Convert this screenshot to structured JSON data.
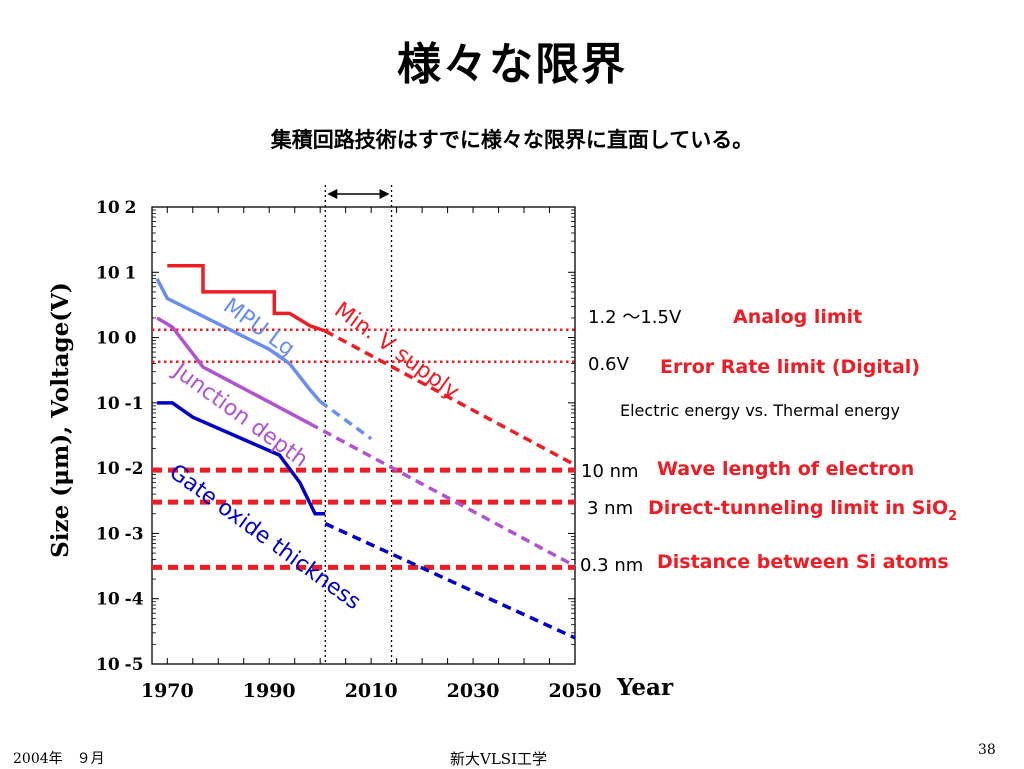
{
  "slide": {
    "title": "様々な限界",
    "subtitle": "集積回路技術はすでに様々な限界に直面している。",
    "footer_date": "2004年　９月",
    "footer_center": "新大VLSI工学",
    "page_number": "38"
  },
  "chart_data": {
    "type": "line",
    "title": "",
    "xlabel": "Year",
    "ylabel": "Size (μm), Voltage(V)",
    "y_scale": "log",
    "xlim": [
      1967,
      2050
    ],
    "ylim_exponents": [
      -5,
      2
    ],
    "x_ticks": [
      "1970",
      "1990",
      "2010",
      "2030",
      "2050"
    ],
    "x_tick_values": [
      1970,
      1990,
      2010,
      2030,
      2050
    ],
    "y_ticks": [
      {
        "base": "10",
        "exp": "2",
        "value": 2
      },
      {
        "base": "10",
        "exp": "1",
        "value": 1
      },
      {
        "base": "10",
        "exp": "0",
        "value": 0
      },
      {
        "base": "10",
        "exp": "-1",
        "value": -1
      },
      {
        "base": "10",
        "exp": "-2",
        "value": -2
      },
      {
        "base": "10",
        "exp": "-3",
        "value": -3
      },
      {
        "base": "10",
        "exp": "-4",
        "value": -4
      },
      {
        "base": "10",
        "exp": "-5",
        "value": -5
      }
    ],
    "vertical_markers": [
      2001,
      2014
    ],
    "series": [
      {
        "name": "Min. V supply",
        "color": "#ee1c24",
        "points": [
          [
            1970,
            1.1
          ],
          [
            1977,
            1.1
          ],
          [
            1977,
            0.7
          ],
          [
            1991,
            0.7
          ],
          [
            1991,
            0.37
          ],
          [
            1994,
            0.37
          ],
          [
            1998,
            0.18
          ],
          [
            2001,
            0.1
          ]
        ],
        "projection": [
          [
            2001,
            0.1
          ],
          [
            2050,
            -1.95
          ]
        ]
      },
      {
        "name": "MPU Lg",
        "color": "#6a8ef0",
        "points": [
          [
            1968,
            0.9
          ],
          [
            1970,
            0.6
          ],
          [
            1990,
            -0.18
          ],
          [
            1994,
            -0.4
          ],
          [
            1998,
            -0.8
          ],
          [
            2000,
            -0.98
          ]
        ],
        "projection": [
          [
            2000,
            -0.98
          ],
          [
            2010,
            -1.55
          ]
        ]
      },
      {
        "name": "Junction depth",
        "color": "#b152d2",
        "points": [
          [
            1968,
            0.3
          ],
          [
            1971,
            0.16
          ],
          [
            1977,
            -0.45
          ],
          [
            1998,
            -1.32
          ]
        ],
        "projection": [
          [
            1998,
            -1.32
          ],
          [
            2050,
            -3.5
          ]
        ]
      },
      {
        "name": "Gate oxide thickness",
        "color": "#0000c8",
        "points": [
          [
            1968,
            -1.0
          ],
          [
            1971,
            -1.0
          ],
          [
            1975,
            -1.22
          ],
          [
            1992,
            -1.8
          ],
          [
            1996,
            -2.22
          ],
          [
            1999,
            -2.7
          ],
          [
            2001,
            -2.7
          ]
        ],
        "projection": [
          [
            2001,
            -2.85
          ],
          [
            2050,
            -4.6
          ]
        ]
      }
    ],
    "horizontal_limits": [
      {
        "value_label": "1.2 〜1.5V",
        "name": "Analog limit",
        "y_exp": 0.12,
        "style": "dotted"
      },
      {
        "value_label": "0.6V",
        "name": "Error Rate limit (Digital)",
        "note": "Electric energy vs. Thermal energy",
        "y_exp": -0.37,
        "style": "dotted"
      },
      {
        "value_label": "10 nm",
        "name": "Wave length of electron",
        "y_exp": -2.03,
        "style": "dashed"
      },
      {
        "value_label": "3 nm",
        "name": "Direct-tunneling limit in SiO",
        "name_sub": "2",
        "y_exp": -2.52,
        "style": "dashed"
      },
      {
        "value_label": "0.3 nm",
        "name": "Distance between Si atoms",
        "y_exp": -3.52,
        "style": "dashed"
      }
    ],
    "limit_color": "#ee1c24"
  }
}
